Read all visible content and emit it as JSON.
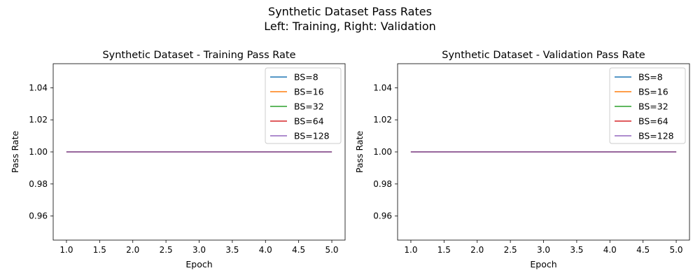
{
  "figure": {
    "suptitle_line1": "Synthetic Dataset Pass Rates",
    "suptitle_line2": "Left: Training, Right: Validation"
  },
  "chart_data": [
    {
      "type": "line",
      "title": "Synthetic Dataset - Training Pass Rate",
      "xlabel": "Epoch",
      "ylabel": "Pass Rate",
      "xlim": [
        0.8,
        5.2
      ],
      "ylim": [
        0.945,
        1.055
      ],
      "xticks": [
        "1.0",
        "1.5",
        "2.0",
        "2.5",
        "3.0",
        "3.5",
        "4.0",
        "4.5",
        "5.0"
      ],
      "yticks": [
        "0.96",
        "0.98",
        "1.00",
        "1.02",
        "1.04"
      ],
      "grid": false,
      "legend_position": "top-right",
      "x": [
        1,
        2,
        3,
        4,
        5
      ],
      "series": [
        {
          "name": "BS=8",
          "color": "#1f77b4",
          "values": [
            1.0,
            1.0,
            1.0,
            1.0,
            1.0
          ]
        },
        {
          "name": "BS=16",
          "color": "#ff7f0e",
          "values": [
            1.0,
            1.0,
            1.0,
            1.0,
            1.0
          ]
        },
        {
          "name": "BS=32",
          "color": "#2ca02c",
          "values": [
            1.0,
            1.0,
            1.0,
            1.0,
            1.0
          ]
        },
        {
          "name": "BS=64",
          "color": "#d62728",
          "values": [
            1.0,
            1.0,
            1.0,
            1.0,
            1.0
          ]
        },
        {
          "name": "BS=128",
          "color": "#9467bd",
          "values": [
            1.0,
            1.0,
            1.0,
            1.0,
            1.0
          ]
        }
      ]
    },
    {
      "type": "line",
      "title": "Synthetic Dataset - Validation Pass Rate",
      "xlabel": "Epoch",
      "ylabel": "Pass Rate",
      "xlim": [
        0.8,
        5.2
      ],
      "ylim": [
        0.945,
        1.055
      ],
      "xticks": [
        "1.0",
        "1.5",
        "2.0",
        "2.5",
        "3.0",
        "3.5",
        "4.0",
        "4.5",
        "5.0"
      ],
      "yticks": [
        "0.96",
        "0.98",
        "1.00",
        "1.02",
        "1.04"
      ],
      "grid": false,
      "legend_position": "top-right",
      "x": [
        1,
        2,
        3,
        4,
        5
      ],
      "series": [
        {
          "name": "BS=8",
          "color": "#1f77b4",
          "values": [
            1.0,
            1.0,
            1.0,
            1.0,
            1.0
          ]
        },
        {
          "name": "BS=16",
          "color": "#ff7f0e",
          "values": [
            1.0,
            1.0,
            1.0,
            1.0,
            1.0
          ]
        },
        {
          "name": "BS=32",
          "color": "#2ca02c",
          "values": [
            1.0,
            1.0,
            1.0,
            1.0,
            1.0
          ]
        },
        {
          "name": "BS=64",
          "color": "#d62728",
          "values": [
            1.0,
            1.0,
            1.0,
            1.0,
            1.0
          ]
        },
        {
          "name": "BS=128",
          "color": "#9467bd",
          "values": [
            1.0,
            1.0,
            1.0,
            1.0,
            1.0
          ]
        }
      ]
    }
  ]
}
